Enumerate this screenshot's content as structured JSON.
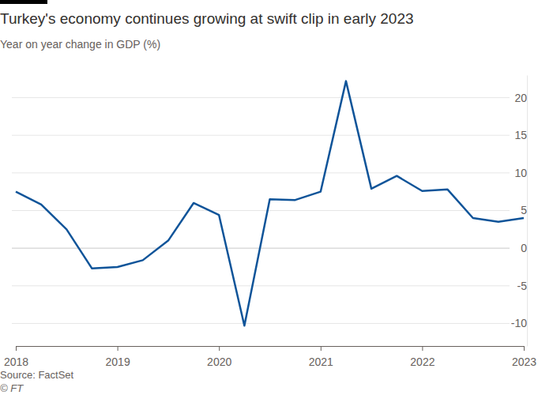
{
  "chart_data": {
    "type": "line",
    "title": "Turkey's economy continues growing at swift clip in early 2023",
    "subtitle": "Year on year change in GDP (%)",
    "source": "Source: FactSet",
    "credit": "© FT",
    "x": [
      2018,
      2018.25,
      2018.5,
      2018.75,
      2019,
      2019.25,
      2019.5,
      2019.75,
      2020,
      2020.25,
      2020.5,
      2020.75,
      2021,
      2021.25,
      2021.5,
      2021.75,
      2022,
      2022.25,
      2022.5,
      2022.75,
      2023
    ],
    "values": [
      7.5,
      5.8,
      2.5,
      -2.7,
      -2.5,
      -1.6,
      1.0,
      6.0,
      4.4,
      -10.3,
      6.5,
      6.4,
      7.5,
      22.2,
      7.9,
      9.6,
      7.6,
      7.8,
      4.0,
      3.5,
      4.0
    ],
    "color": "#0f5499",
    "xlim": [
      2018,
      2023
    ],
    "xticks": [
      2018,
      2019,
      2020,
      2021,
      2022,
      2023
    ],
    "ylim": [
      -13,
      23
    ],
    "yticks": [
      -10,
      -5,
      0,
      5,
      10,
      15,
      20
    ],
    "grid": true
  }
}
